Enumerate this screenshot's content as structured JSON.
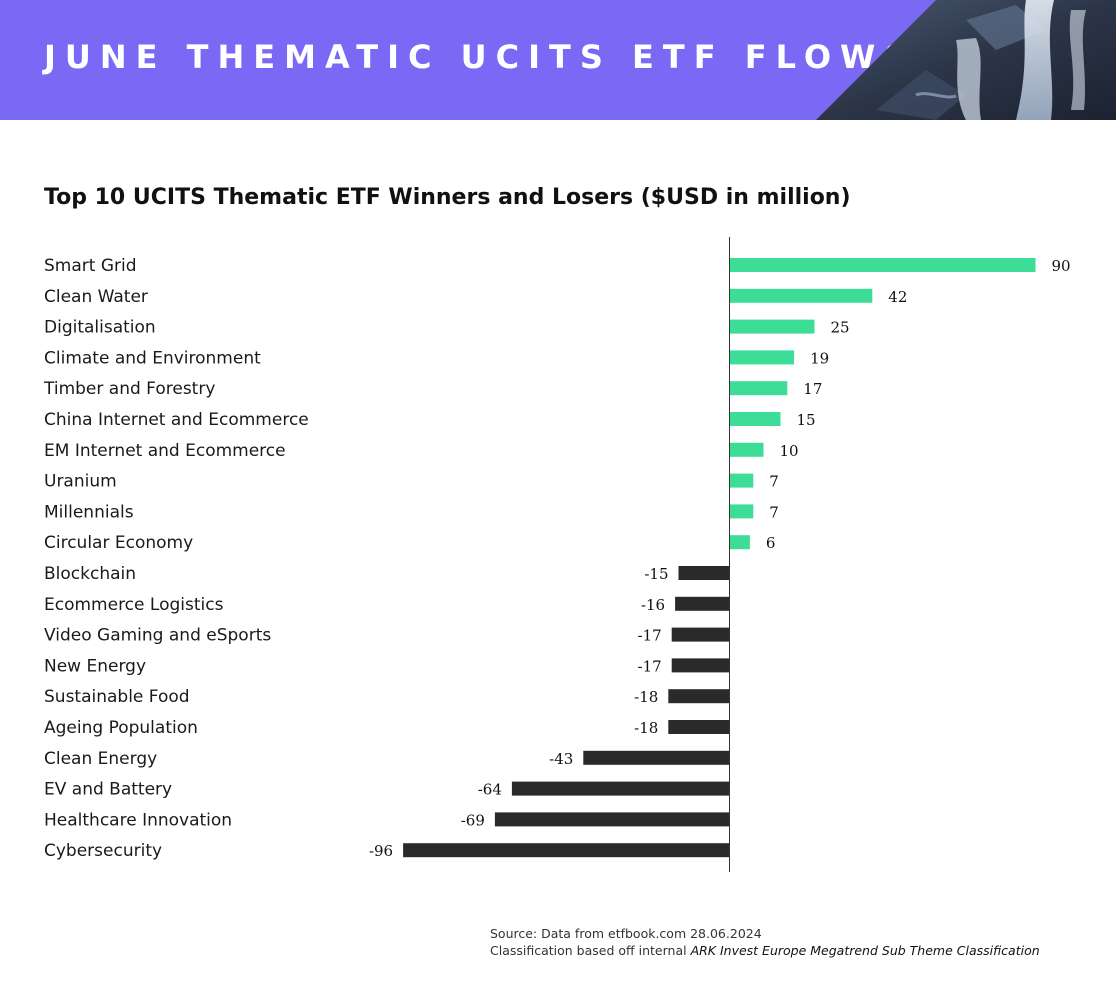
{
  "banner": {
    "title": "JUNE THEMATIC UCITS ETF FLOWS",
    "background_color": "#7b68f5",
    "photo": "waterfall-photo"
  },
  "chart_data": {
    "type": "bar",
    "orientation": "horizontal",
    "title": "Top 10 UCITS Thematic ETF Winners and Losers ($USD in million)",
    "categories": [
      "Smart Grid",
      "Clean Water",
      "Digitalisation",
      "Climate and Environment",
      "Timber and Forestry",
      "China Internet and Ecommerce",
      "EM Internet and Ecommerce",
      "Uranium",
      "Millennials",
      "Circular Economy",
      "Blockchain",
      "Ecommerce Logistics",
      "Video Gaming and eSports",
      "New Energy",
      "Sustainable Food",
      "Ageing Population",
      "Clean Energy",
      "EV and Battery",
      "Healthcare Innovation",
      "Cybersecurity"
    ],
    "values": [
      90,
      42,
      25,
      19,
      17,
      15,
      10,
      7,
      7,
      6,
      -15,
      -16,
      -17,
      -17,
      -18,
      -18,
      -43,
      -64,
      -69,
      -96
    ],
    "value_labels": [
      "90",
      "42",
      "25",
      "19",
      "17",
      "15",
      "10",
      "7",
      "7",
      "6",
      "-15",
      "-16",
      "-17",
      "-17",
      "-18",
      "-18",
      "-43",
      "-64",
      "-69",
      "-96"
    ],
    "xlim": [
      -96,
      90
    ],
    "grid": false,
    "positive_color": "#3ddc97",
    "negative_color": "#2a2a2a"
  },
  "footer": {
    "source": "Source: Data from etfbook.com 28.06.2024",
    "classification_prefix": "Classification based off internal ",
    "classification_italic": "ARK Invest Europe Megatrend Sub Theme Classification"
  }
}
